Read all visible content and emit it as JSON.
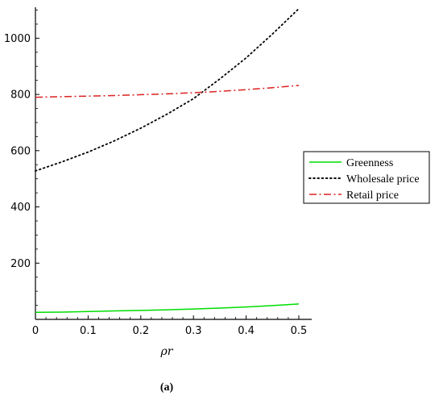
{
  "chart_data": {
    "type": "line",
    "xlabel": "ρr",
    "ylabel": "",
    "xlim": [
      0,
      0.5
    ],
    "ylim": [
      0,
      1110
    ],
    "x_ticks": [
      {
        "value": 0,
        "label": "0"
      },
      {
        "value": 0.1,
        "label": "0.1"
      },
      {
        "value": 0.2,
        "label": "0.2"
      },
      {
        "value": 0.3,
        "label": "0.3"
      },
      {
        "value": 0.4,
        "label": "0.4"
      },
      {
        "value": 0.5,
        "label": "0.5"
      }
    ],
    "y_ticks": [
      {
        "value": 200,
        "label": "200"
      },
      {
        "value": 400,
        "label": "400"
      },
      {
        "value": 600,
        "label": "600"
      },
      {
        "value": 800,
        "label": "800"
      },
      {
        "value": 1000,
        "label": "1000"
      }
    ],
    "grid": false,
    "legend_position": "right",
    "series": [
      {
        "name": "Greenness",
        "color": "#00dd00",
        "style": "solid",
        "x": [
          0,
          0.05,
          0.1,
          0.15,
          0.2,
          0.25,
          0.3,
          0.35,
          0.4,
          0.45,
          0.5
        ],
        "y": [
          25,
          26,
          28,
          30,
          32,
          34,
          37,
          40,
          44,
          49,
          55
        ]
      },
      {
        "name": "Wholesale price",
        "color": "#000000",
        "style": "dotted",
        "x": [
          0,
          0.05,
          0.1,
          0.15,
          0.2,
          0.25,
          0.3,
          0.35,
          0.4,
          0.45,
          0.5
        ],
        "y": [
          528,
          560,
          595,
          635,
          680,
          730,
          785,
          855,
          930,
          1015,
          1105
        ]
      },
      {
        "name": "Retail price",
        "color": "#dd2222",
        "style": "dashdot",
        "x": [
          0,
          0.05,
          0.1,
          0.15,
          0.2,
          0.25,
          0.3,
          0.35,
          0.4,
          0.45,
          0.5
        ],
        "y": [
          790,
          792,
          794,
          796,
          799,
          802,
          806,
          811,
          817,
          824,
          832
        ]
      }
    ]
  },
  "caption": "(a)"
}
